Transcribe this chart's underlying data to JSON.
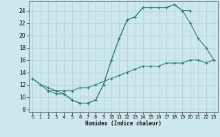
{
  "xlabel": "Humidex (Indice chaleur)",
  "ylabel": "",
  "bg_color": "#cde8ec",
  "line_color": "#2d7d6e",
  "grid_color": "#aecfd4",
  "xlim": [
    -0.5,
    23.5
  ],
  "ylim": [
    7.5,
    25.5
  ],
  "xticks": [
    0,
    1,
    2,
    3,
    4,
    5,
    6,
    7,
    8,
    9,
    10,
    11,
    12,
    13,
    14,
    15,
    16,
    17,
    18,
    19,
    20,
    21,
    22,
    23
  ],
  "yticks": [
    8,
    10,
    12,
    14,
    16,
    18,
    20,
    22,
    24
  ],
  "line1_x": [
    0,
    1,
    2,
    3,
    4,
    5,
    6,
    7,
    8,
    9,
    10,
    11,
    12,
    13,
    14,
    15,
    16,
    17,
    18,
    19,
    20
  ],
  "line1_y": [
    13,
    12,
    11,
    11,
    10.5,
    9.5,
    9,
    9,
    9.5,
    12,
    16,
    19.5,
    22.5,
    23.0,
    24.5,
    24.5,
    24.5,
    24.5,
    25,
    24,
    24
  ],
  "line2_x": [
    0,
    1,
    2,
    3,
    4,
    5,
    6,
    7,
    8,
    9,
    10,
    11,
    12,
    13,
    14,
    15,
    16,
    17,
    18,
    19,
    20,
    21,
    22,
    23
  ],
  "line2_y": [
    13,
    12,
    11.5,
    11,
    11,
    11,
    11.5,
    11.5,
    12,
    12.5,
    13,
    13.5,
    14,
    14.5,
    15,
    15,
    15,
    15.5,
    15.5,
    15.5,
    16,
    16,
    15.5,
    16
  ],
  "line3_x": [
    2,
    3,
    4,
    5,
    6,
    7,
    8,
    9,
    10,
    11,
    12,
    13,
    14,
    15,
    16,
    17,
    18,
    19,
    20,
    21,
    22,
    23
  ],
  "line3_y": [
    11,
    10.5,
    10.5,
    9.5,
    9,
    9,
    9.5,
    12,
    16,
    19.5,
    22.5,
    23,
    24.5,
    24.5,
    24.5,
    24.5,
    25,
    24,
    22,
    19.5,
    18,
    16
  ]
}
